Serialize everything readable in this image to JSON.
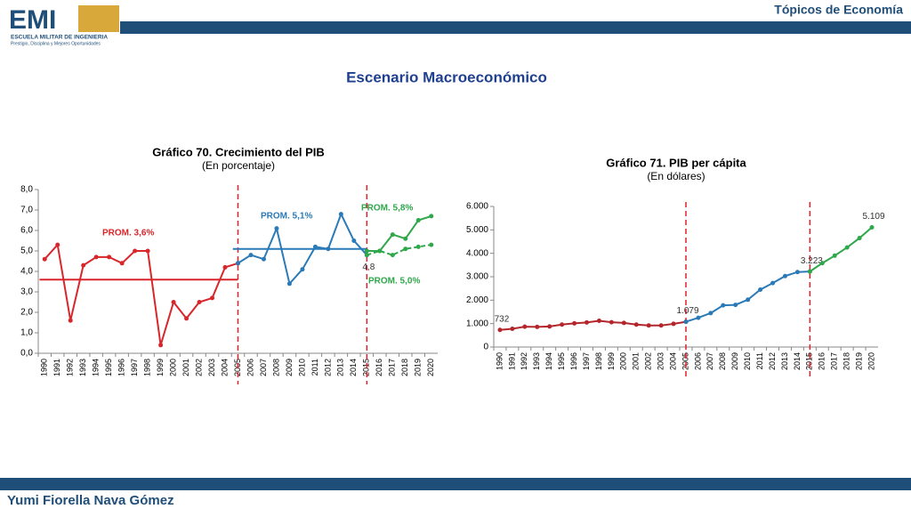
{
  "header": {
    "logo": "EMI",
    "school": "ESCUELA MILITAR DE INGENIERIA",
    "motto": "Prestigio, Disciplina y Mejores Oportunidades",
    "section": "Tópicos de Economía",
    "title": "Escenario Macroeconómico"
  },
  "footer": {
    "author": "Yumi Fiorella Nava Gómez"
  },
  "chart_data": [
    {
      "type": "line",
      "title": "Gráfico 70. Crecimiento del PIB",
      "subtitle": "(En porcentaje)",
      "categories": [
        "1990",
        "1991",
        "1992",
        "1993",
        "1994",
        "1995",
        "1996",
        "1997",
        "1998",
        "1999",
        "2000",
        "2001",
        "2002",
        "2003",
        "2004",
        "2005",
        "2006",
        "2007",
        "2008",
        "2009",
        "2010",
        "2011",
        "2012",
        "2013",
        "2014",
        "2015",
        "2016",
        "2017",
        "2018",
        "2019",
        "2020"
      ],
      "series": [
        {
          "color": "#d9262b",
          "values": [
            4.6,
            5.3,
            1.6,
            4.3,
            4.7,
            4.7,
            4.4,
            5.0,
            5.0,
            0.4,
            2.5,
            1.7,
            2.5,
            2.7,
            4.2,
            4.4,
            null,
            null,
            null,
            null,
            null,
            null,
            null,
            null,
            null,
            null,
            null,
            null,
            null,
            null,
            null
          ]
        },
        {
          "color": "#2a7ab8",
          "values": [
            null,
            null,
            null,
            null,
            null,
            null,
            null,
            null,
            null,
            null,
            null,
            null,
            null,
            null,
            null,
            4.4,
            4.8,
            4.6,
            6.1,
            3.4,
            4.1,
            5.2,
            5.1,
            6.8,
            5.5,
            4.8,
            null,
            null,
            null,
            null,
            null
          ],
          "value_labels": [
            null,
            null,
            null,
            null,
            null,
            null,
            null,
            null,
            null,
            null,
            null,
            null,
            null,
            null,
            null,
            null,
            null,
            null,
            null,
            null,
            null,
            null,
            null,
            null,
            null,
            "4,8",
            null,
            null,
            null,
            null,
            null
          ]
        },
        {
          "color": "#2ea84a",
          "values": [
            null,
            null,
            null,
            null,
            null,
            null,
            null,
            null,
            null,
            null,
            null,
            null,
            null,
            null,
            null,
            null,
            null,
            null,
            null,
            null,
            null,
            null,
            null,
            null,
            null,
            5.0,
            5.0,
            5.8,
            5.6,
            6.5,
            6.7
          ]
        },
        {
          "color": "#2ea84a",
          "dash": true,
          "values": [
            null,
            null,
            null,
            null,
            null,
            null,
            null,
            null,
            null,
            null,
            null,
            null,
            null,
            null,
            null,
            null,
            null,
            null,
            null,
            null,
            null,
            null,
            null,
            null,
            null,
            4.8,
            5.0,
            4.8,
            5.1,
            5.2,
            5.3
          ]
        }
      ],
      "averages": [
        {
          "value": 3.6,
          "label": "PROM. 3,6%",
          "color": "#d9262b",
          "range": [
            "1990",
            "2005"
          ]
        },
        {
          "value": 5.1,
          "label": "PROM. 5,1%",
          "color": "#2a7ab8",
          "range": [
            "2005",
            "2015"
          ]
        },
        {
          "value": 5.8,
          "label": "PROM. 5,8%",
          "color": "#2ea84a"
        },
        {
          "value": 5.0,
          "label": "PROM. 5,0%",
          "color": "#2ea84a"
        }
      ],
      "dividers": [
        "2005",
        "2015"
      ],
      "ylim": [
        0,
        8
      ],
      "yticks": [
        {
          "value": 0,
          "label": "0,0"
        },
        {
          "value": 1,
          "label": "1,0"
        },
        {
          "value": 2,
          "label": "2,0"
        },
        {
          "value": 3,
          "label": "3,0"
        },
        {
          "value": 4,
          "label": "4,0"
        },
        {
          "value": 5,
          "label": "5,0"
        },
        {
          "value": 6,
          "label": "6,0"
        },
        {
          "value": 7,
          "label": "7,0"
        },
        {
          "value": 8,
          "label": "8,0"
        }
      ]
    },
    {
      "type": "line",
      "title": "Gráfico 71. PIB per cápita",
      "subtitle": "(En dólares)",
      "categories": [
        "1990",
        "1991",
        "1992",
        "1993",
        "1994",
        "1995",
        "1996",
        "1997",
        "1998",
        "1999",
        "2000",
        "2001",
        "2002",
        "2003",
        "2004",
        "2005",
        "2006",
        "2007",
        "2008",
        "2009",
        "2010",
        "2011",
        "2012",
        "2013",
        "2014",
        "2015",
        "2016",
        "2017",
        "2018",
        "2019",
        "2020"
      ],
      "series": [
        {
          "color": "#b3262b",
          "values": [
            732,
            780,
            870,
            860,
            880,
            960,
            1010,
            1050,
            1120,
            1060,
            1030,
            960,
            920,
            920,
            990,
            1079,
            null,
            null,
            null,
            null,
            null,
            null,
            null,
            null,
            null,
            null,
            null,
            null,
            null,
            null,
            null
          ],
          "value_labels": [
            "732",
            null,
            null,
            null,
            null,
            null,
            null,
            null,
            null,
            null,
            null,
            null,
            null,
            null,
            null,
            "1.079",
            null,
            null,
            null,
            null,
            null,
            null,
            null,
            null,
            null,
            null,
            null,
            null,
            null,
            null,
            null
          ]
        },
        {
          "color": "#2a7ab8",
          "values": [
            null,
            null,
            null,
            null,
            null,
            null,
            null,
            null,
            null,
            null,
            null,
            null,
            null,
            null,
            null,
            1079,
            1250,
            1450,
            1780,
            1800,
            2020,
            2450,
            2730,
            3030,
            3200,
            3223,
            null,
            null,
            null,
            null,
            null
          ],
          "value_labels": [
            null,
            null,
            null,
            null,
            null,
            null,
            null,
            null,
            null,
            null,
            null,
            null,
            null,
            null,
            null,
            null,
            null,
            null,
            null,
            null,
            null,
            null,
            null,
            null,
            null,
            "3.223",
            null,
            null,
            null,
            null,
            null
          ]
        },
        {
          "color": "#2ea84a",
          "values": [
            null,
            null,
            null,
            null,
            null,
            null,
            null,
            null,
            null,
            null,
            null,
            null,
            null,
            null,
            null,
            null,
            null,
            null,
            null,
            null,
            null,
            null,
            null,
            null,
            null,
            3223,
            3580,
            3900,
            4250,
            4650,
            5109
          ],
          "value_labels": [
            null,
            null,
            null,
            null,
            null,
            null,
            null,
            null,
            null,
            null,
            null,
            null,
            null,
            null,
            null,
            null,
            null,
            null,
            null,
            null,
            null,
            null,
            null,
            null,
            null,
            null,
            null,
            null,
            null,
            null,
            "5.109"
          ]
        }
      ],
      "dividers": [
        "2005",
        "2015"
      ],
      "ylim": [
        0,
        6000
      ],
      "yticks": [
        {
          "value": 0,
          "label": "0"
        },
        {
          "value": 1000,
          "label": "1.000"
        },
        {
          "value": 2000,
          "label": "2.000"
        },
        {
          "value": 3000,
          "label": "3.000"
        },
        {
          "value": 4000,
          "label": "4.000"
        },
        {
          "value": 5000,
          "label": "5.000"
        },
        {
          "value": 6000,
          "label": "6.000"
        }
      ]
    }
  ]
}
